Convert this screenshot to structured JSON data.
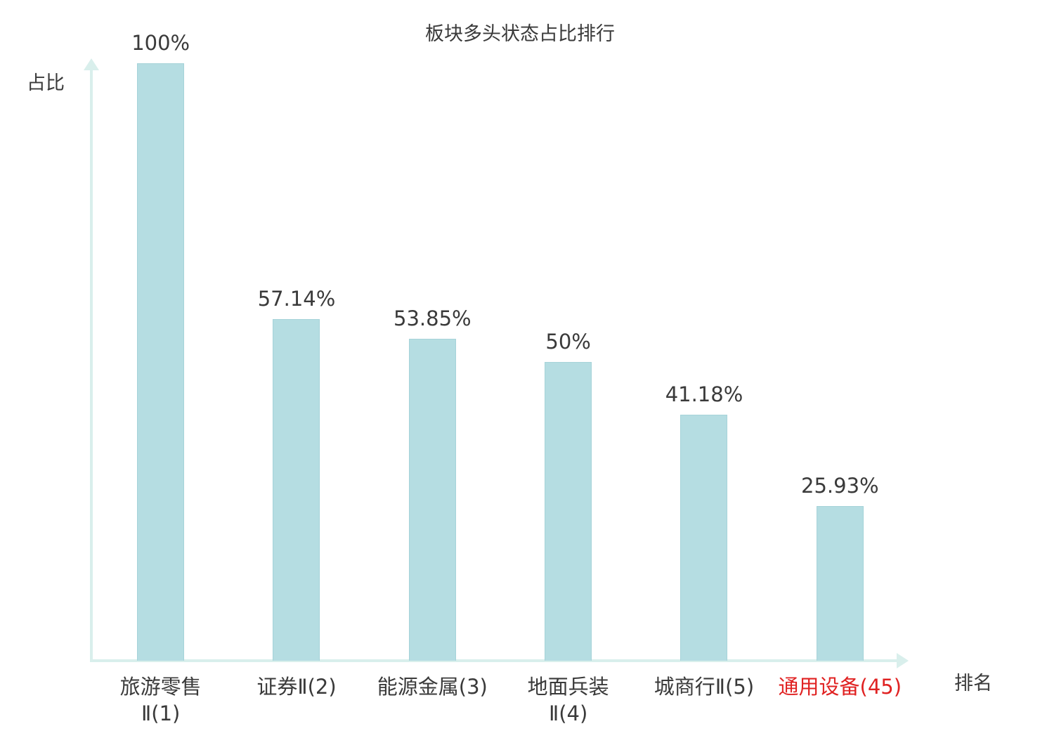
{
  "chart_data": {
    "type": "bar",
    "title": "板块多头状态占比排行",
    "xlabel": "排名",
    "ylabel": "占比",
    "ylim": [
      0,
      100
    ],
    "categories": [
      "旅游零售\nⅡ(1)",
      "证券Ⅱ(2)",
      "能源金属(3)",
      "地面兵装\nⅡ(4)",
      "城商行Ⅱ(5)",
      "通用设备(45)"
    ],
    "values": [
      100,
      57.14,
      53.85,
      50,
      41.18,
      25.93
    ],
    "value_labels": [
      "100%",
      "57.14%",
      "53.85%",
      "50%",
      "41.18%",
      "25.93%"
    ],
    "highlight_index": 5,
    "highlight_color": "#e02222",
    "bar_color": "#b5dde2",
    "axis_color": "#d9efec",
    "text_color": "#3a3a3a",
    "legend": "none",
    "grid": "off"
  }
}
